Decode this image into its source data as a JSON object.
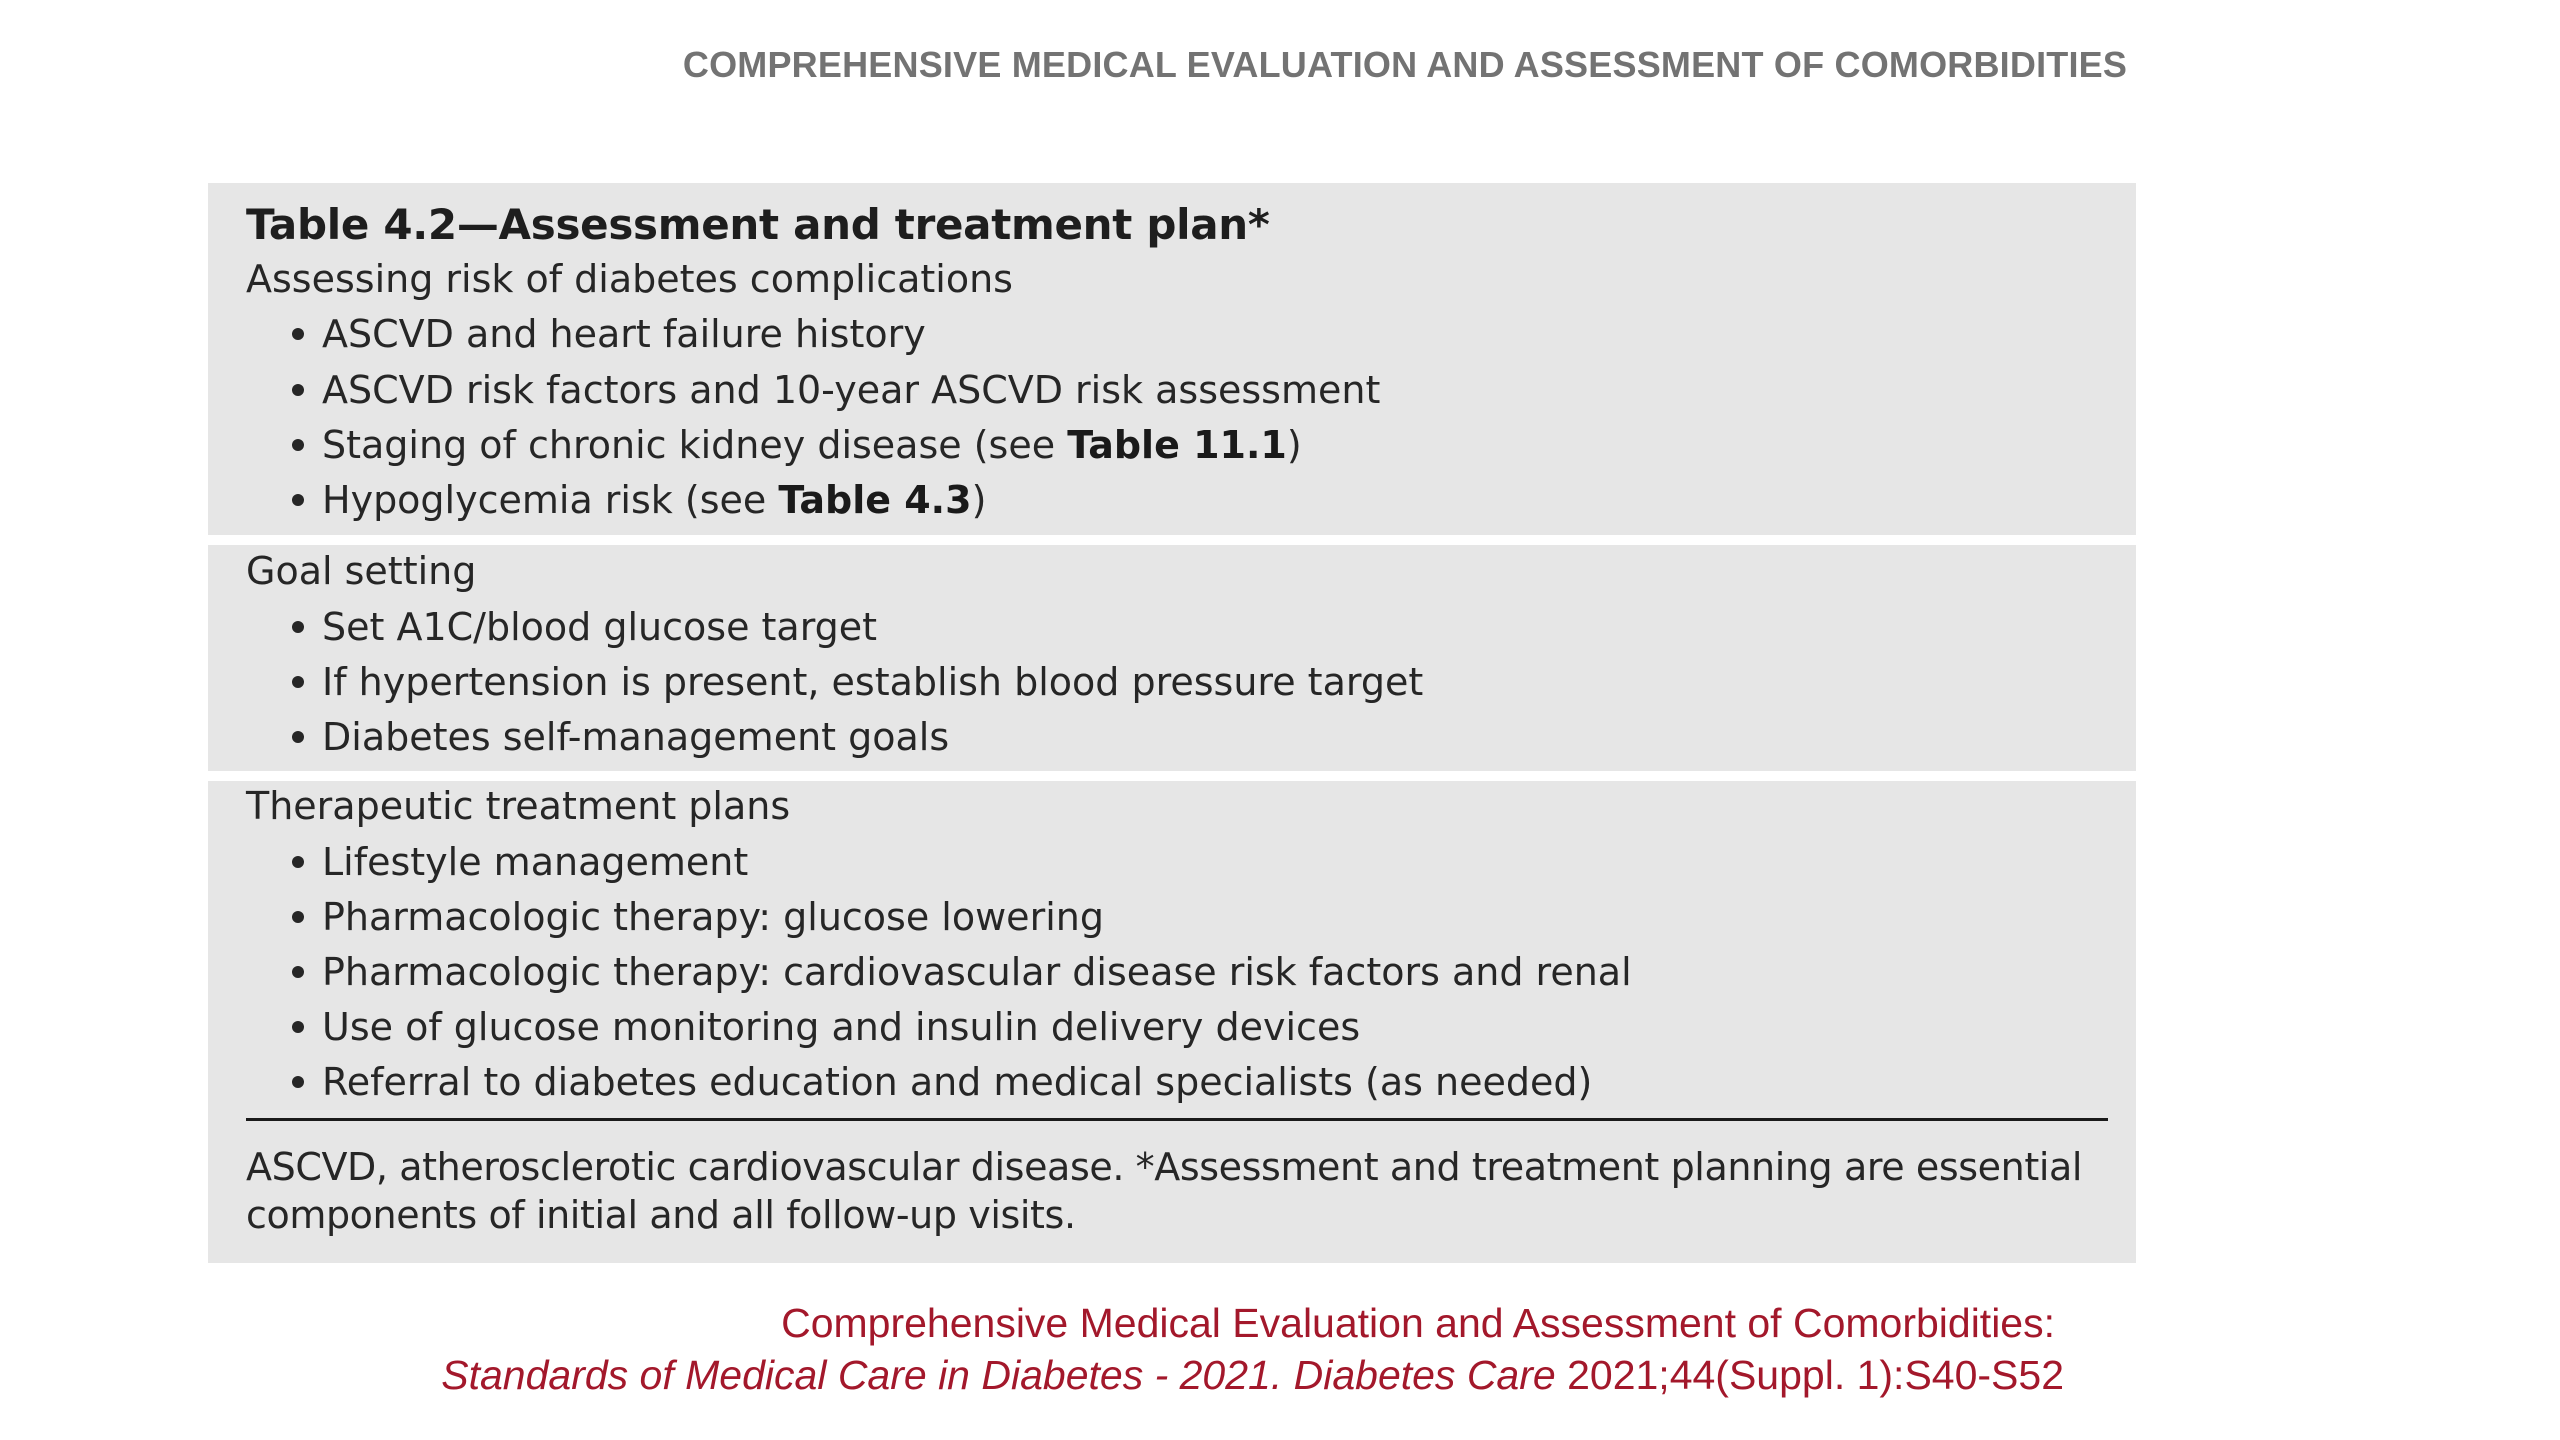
{
  "header": {
    "title": "COMPREHENSIVE MEDICAL EVALUATION AND ASSESSMENT OF COMORBIDITIES"
  },
  "table": {
    "title": "Table 4.2—Assessment and treatment plan*",
    "sections": [
      {
        "heading": "Assessing risk of diabetes complications",
        "items": [
          {
            "text": "ASCVD and heart failure history"
          },
          {
            "text": "ASCVD risk factors and 10-year ASCVD risk assessment"
          },
          {
            "text": "Staging of chronic kidney disease (see ",
            "ref": "Table 11.1",
            "suffix": ")"
          },
          {
            "text": "Hypoglycemia risk (see ",
            "ref": "Table 4.3",
            "suffix": ")"
          }
        ]
      },
      {
        "heading": "Goal setting",
        "items": [
          {
            "text": "Set A1C/blood glucose target"
          },
          {
            "text": "If hypertension is present, establish blood pressure target"
          },
          {
            "text": "Diabetes self-management goals"
          }
        ]
      },
      {
        "heading": "Therapeutic treatment plans",
        "items": [
          {
            "text": "Lifestyle management"
          },
          {
            "text": "Pharmacologic therapy: glucose lowering"
          },
          {
            "text": "Pharmacologic therapy: cardiovascular disease risk factors and renal"
          },
          {
            "text": "Use of glucose monitoring and insulin delivery devices"
          },
          {
            "text": "Referral to diabetes education and medical specialists (as needed)"
          }
        ]
      }
    ],
    "footnote": "ASCVD, atherosclerotic cardiovascular disease. *Assessment and treatment planning are essential components of initial and all follow-up visits."
  },
  "citation": {
    "line1": "Comprehensive Medical Evaluation and Assessment of Comorbidities:",
    "line2_italic": "Standards of Medical Care in Diabetes - 2021. Diabetes Care",
    "line2_plain": " 2021;44(Suppl. 1):S40-S52"
  },
  "colors": {
    "header_gray": "#737373",
    "table_background": "#e6e6e6",
    "citation_red": "#a3182b"
  }
}
